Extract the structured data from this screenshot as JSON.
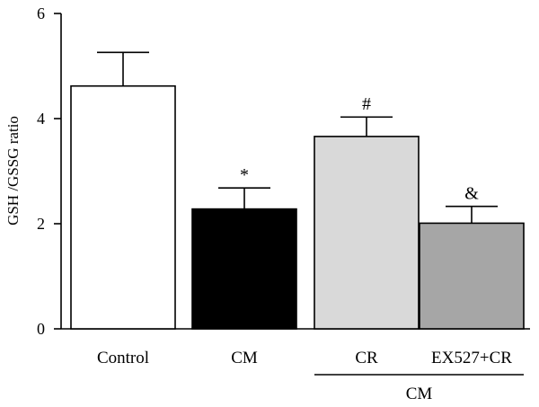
{
  "chart_data": {
    "type": "bar",
    "ylabel": "GSH /GSSG ratio",
    "xlabel": "",
    "ylim": [
      0,
      6
    ],
    "yticks": [
      0,
      2,
      4,
      6
    ],
    "grid": false,
    "categories": [
      "Control",
      "CM",
      "CR",
      "EX527+CR"
    ],
    "values": [
      4.62,
      2.28,
      3.66,
      2.01
    ],
    "errors": [
      0.64,
      0.4,
      0.37,
      0.32
    ],
    "bar_colors": [
      "#ffffff",
      "#000000",
      "#d9d9d9",
      "#a6a6a6"
    ],
    "significance": [
      "",
      "*",
      "#",
      "&"
    ],
    "group_label": {
      "text": "CM",
      "spans": [
        "CR",
        "EX527+CR"
      ]
    }
  }
}
